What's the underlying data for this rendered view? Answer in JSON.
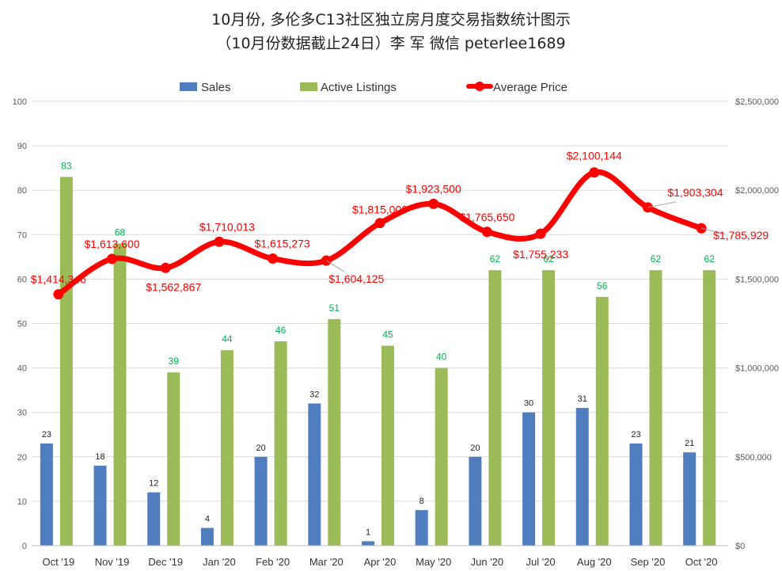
{
  "title_line1": "10月份, 多伦多C13社区独立房月度交易指数统计图示",
  "title_line2": "（10月份数据截止24日）李 军  微信  peterlee1689",
  "colors": {
    "sales": "#4f7dbd",
    "listings": "#9bbb59",
    "price": "#ff0000",
    "listing_label": "#00b050",
    "price_label": "#ff0000",
    "grid": "#d9d9d9",
    "axis_text": "#595959"
  },
  "chart_data": {
    "type": "bar",
    "categories": [
      "Oct '19",
      "Nov '19",
      "Dec '19",
      "Jan '20",
      "Feb '20",
      "Mar '20",
      "Apr '20",
      "May '20",
      "Jun '20",
      "Jul '20",
      "Aug '20",
      "Sep '20",
      "Oct '20"
    ],
    "ylim": [
      0,
      100
    ],
    "y2lim": [
      0,
      2500000
    ],
    "y_ticks": [
      "0",
      "10",
      "20",
      "30",
      "40",
      "50",
      "60",
      "70",
      "80",
      "90",
      "100"
    ],
    "y2_ticks": [
      "$0",
      "$500,000",
      "$1,000,000",
      "$1,500,000",
      "$2,000,000",
      "$2,500,000"
    ],
    "legend_position": "top",
    "grid": true,
    "series": [
      {
        "name": "Sales",
        "type": "bar",
        "axis": "left",
        "values": [
          23,
          18,
          12,
          4,
          20,
          32,
          1,
          8,
          20,
          30,
          31,
          23,
          21
        ],
        "labels": [
          "23",
          "18",
          "12",
          "4",
          "20",
          "32",
          "1",
          "8",
          "20",
          "30",
          "31",
          "23",
          "21"
        ]
      },
      {
        "name": "Active Listings",
        "type": "bar",
        "axis": "left",
        "values": [
          83,
          68,
          39,
          44,
          46,
          51,
          45,
          40,
          62,
          62,
          56,
          62,
          62
        ],
        "labels": [
          "83",
          "68",
          "39",
          "44",
          "46",
          "51",
          "45",
          "40",
          "62",
          "62",
          "56",
          "62",
          "62"
        ]
      },
      {
        "name": "Average Price",
        "type": "line",
        "axis": "right",
        "values": [
          1414346,
          1613600,
          1562867,
          1710013,
          1615273,
          1604125,
          1815000,
          1923500,
          1765650,
          1755233,
          2100144,
          1903304,
          1785929
        ],
        "labels": [
          "$1,414,346",
          "$1,613,600",
          "$1,562,867",
          "$1,710,013",
          "$1,615,273",
          "$1,604,125",
          "$1,815,000",
          "$1,923,500",
          "$1,765,650",
          "$1,755,233",
          "$2,100,144",
          "$1,903,304",
          "$1,785,929"
        ]
      }
    ]
  }
}
